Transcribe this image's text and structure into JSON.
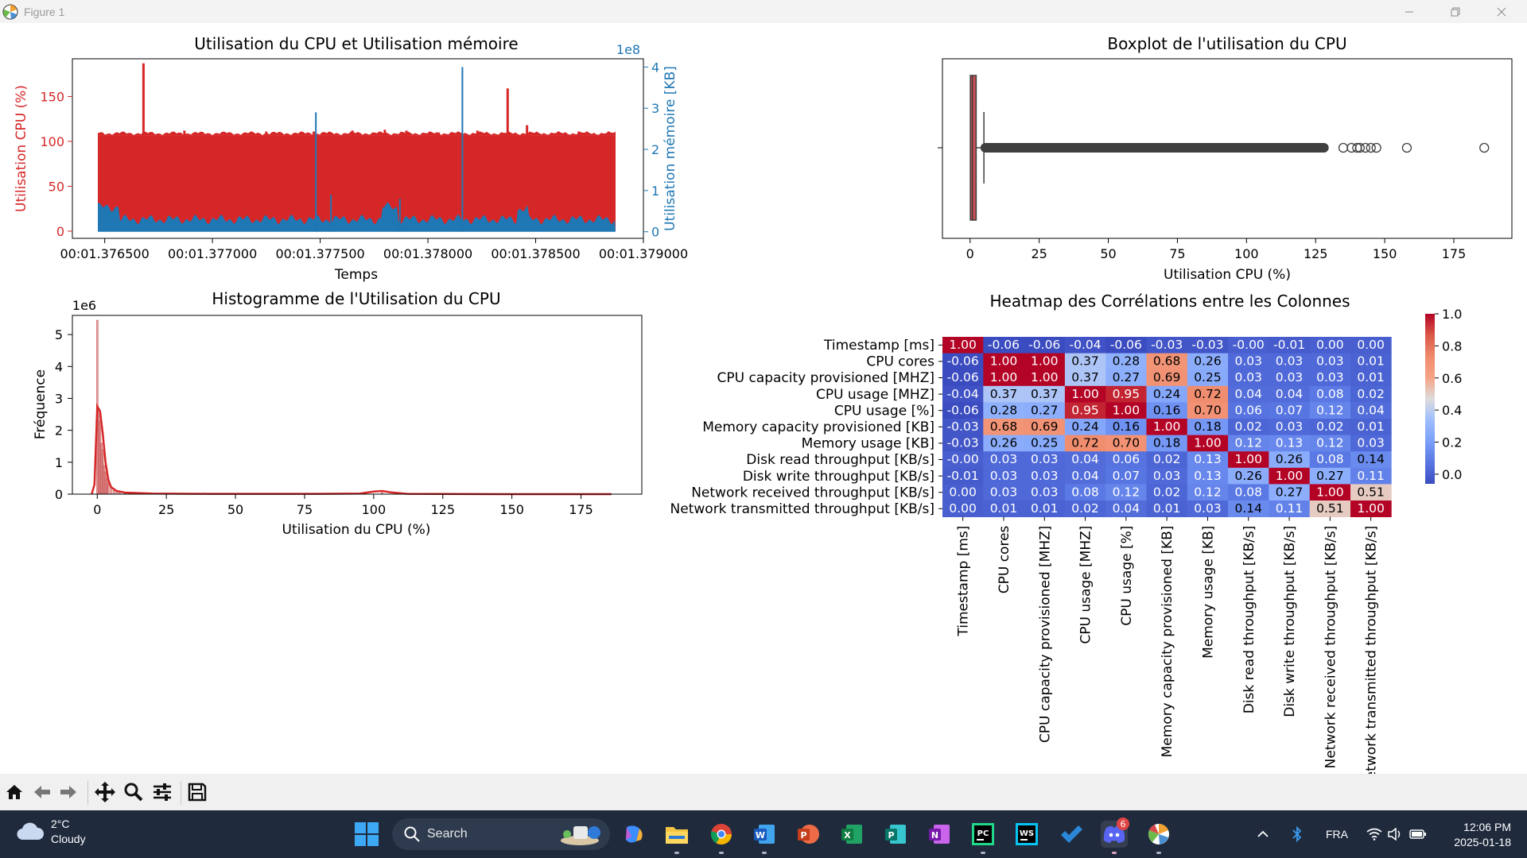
{
  "window": {
    "title": "Figure 1"
  },
  "colors": {
    "red": "#d62728",
    "blue": "#1f77b4",
    "dark_outline": "#404040"
  },
  "figure": {
    "top_left": {
      "title": "Utilisation du CPU et Utilisation mémoire",
      "xlabel": "Temps",
      "ylabel_left": "Utilisation CPU (%)",
      "ylabel_right": "Utilisation mémoire [KB]",
      "right_offset_text": "1e8",
      "xticks": [
        "00:01.376500",
        "00:01.377000",
        "00:01.377500",
        "00:01.378000",
        "00:01.378500",
        "00:01.379000"
      ],
      "yticks_left": [
        "0",
        "50",
        "100",
        "150"
      ],
      "yticks_right": [
        "0",
        "1",
        "2",
        "3",
        "4"
      ]
    },
    "top_right": {
      "title": "Boxplot de l'utilisation du CPU",
      "xlabel": "Utilisation CPU (%)",
      "xticks": [
        "0",
        "25",
        "50",
        "75",
        "100",
        "125",
        "150",
        "175"
      ]
    },
    "bottom_left": {
      "title": "Histogramme de l'Utilisation du CPU",
      "xlabel": "Utilisation du CPU (%)",
      "ylabel": "Fréquence",
      "offset_text": "1e6",
      "xticks": [
        "0",
        "25",
        "50",
        "75",
        "100",
        "125",
        "150",
        "175"
      ],
      "yticks": [
        "0",
        "1",
        "2",
        "3",
        "4",
        "5"
      ]
    },
    "heatmap": {
      "title": "Heatmap des Corrélations entre les Colonnes",
      "colorbar_ticks": [
        "0.0",
        "0.2",
        "0.4",
        "0.6",
        "0.8",
        "1.0"
      ]
    }
  },
  "chart_data": [
    {
      "type": "area",
      "title": "Utilisation du CPU et Utilisation mémoire",
      "xlabel": "Temps",
      "ylabel": "Utilisation CPU (%)",
      "y2label": "Utilisation mémoire [KB]",
      "xlim": [
        "00:01.376350",
        "00:01.379000"
      ],
      "ylim": [
        -8,
        192
      ],
      "y2lim": [
        -16000000.0,
        420000000.0
      ],
      "series": [
        {
          "name": "Utilisation CPU (%)",
          "axis": "left",
          "baseline": 107,
          "spikes": [
            {
              "t": "00:01.376680",
              "v": 187
            },
            {
              "t": "00:01.376870",
              "v": 112
            },
            {
              "t": "00:01.377060",
              "v": 110
            },
            {
              "t": "00:01.377250",
              "v": 111
            },
            {
              "t": "00:01.377470",
              "v": 111
            },
            {
              "t": "00:01.377650",
              "v": 112
            },
            {
              "t": "00:01.377800",
              "v": 113
            },
            {
              "t": "00:01.377900",
              "v": 112
            },
            {
              "t": "00:01.378050",
              "v": 110
            },
            {
              "t": "00:01.378230",
              "v": 112
            },
            {
              "t": "00:01.378370",
              "v": 159
            },
            {
              "t": "00:01.378460",
              "v": 118
            },
            {
              "t": "00:01.378700",
              "v": 111
            }
          ]
        },
        {
          "name": "Utilisation mémoire [KB]",
          "axis": "right",
          "baseline": 30000000.0,
          "spikes": [
            {
              "t": "00:01.377480",
              "v": 290000000.0
            },
            {
              "t": "00:01.378160",
              "v": 400000000.0
            },
            {
              "t": "00:01.377550",
              "v": 90000000.0
            },
            {
              "t": "00:01.377870",
              "v": 80000000.0
            }
          ]
        }
      ]
    },
    {
      "type": "box",
      "title": "Boxplot de l'utilisation du CPU",
      "xlabel": "Utilisation CPU (%)",
      "xlim": [
        -10,
        196
      ],
      "q1": 0.1,
      "median": 0.8,
      "q3": 2.2,
      "whisker_low": 0,
      "whisker_high": 5,
      "outliers_continuous_to": 128,
      "outliers": [
        135,
        138,
        140,
        141,
        143,
        145,
        147,
        158,
        186
      ]
    },
    {
      "type": "bar",
      "title": "Histogramme de l'Utilisation du CPU",
      "xlabel": "Utilisation du CPU (%)",
      "ylabel": "Fréquence",
      "xlim": [
        -9,
        197
      ],
      "ylim": [
        0,
        5600000.0
      ],
      "bins": [
        {
          "x": 0.0,
          "v": 5450000.0
        },
        {
          "x": 0.5,
          "v": 2600000.0
        },
        {
          "x": 1.0,
          "v": 2300000.0
        },
        {
          "x": 1.5,
          "v": 1600000.0
        },
        {
          "x": 2.0,
          "v": 1400000.0
        },
        {
          "x": 2.5,
          "v": 900000.0
        },
        {
          "x": 3.0,
          "v": 700000.0
        },
        {
          "x": 3.5,
          "v": 500000.0
        },
        {
          "x": 4.0,
          "v": 350000.0
        },
        {
          "x": 5.0,
          "v": 200000.0
        },
        {
          "x": 6.0,
          "v": 120000.0
        },
        {
          "x": 7.0,
          "v": 80000.0
        },
        {
          "x": 8.0,
          "v": 50000.0
        },
        {
          "x": 10.0,
          "v": 30000.0
        },
        {
          "x": 103.0,
          "v": 50000.0
        }
      ],
      "kde": [
        [
          -2,
          0
        ],
        [
          -1,
          300000.0
        ],
        [
          0,
          2750000.0
        ],
        [
          1,
          2600000.0
        ],
        [
          2,
          1900000.0
        ],
        [
          3,
          1000000.0
        ],
        [
          4,
          450000.0
        ],
        [
          5,
          220000.0
        ],
        [
          7,
          100000.0
        ],
        [
          10,
          50000.0
        ],
        [
          20,
          20000.0
        ],
        [
          40,
          10000.0
        ],
        [
          80,
          10000.0
        ],
        [
          95,
          20000.0
        ],
        [
          100,
          80000.0
        ],
        [
          103,
          100000.0
        ],
        [
          106,
          60000.0
        ],
        [
          112,
          10000.0
        ],
        [
          150,
          0.0
        ],
        [
          186,
          0.0
        ]
      ]
    },
    {
      "type": "heatmap",
      "title": "Heatmap des Corrélations entre les Colonnes",
      "labels": [
        "Timestamp [ms]",
        "CPU cores",
        "CPU capacity provisioned [MHZ]",
        "CPU usage [MHZ]",
        "CPU usage [%]",
        "Memory capacity provisioned [KB]",
        "Memory usage [KB]",
        "Disk read throughput [KB/s]",
        "Disk write throughput [KB/s]",
        "Network received throughput [KB/s]",
        "Network transmitted throughput [KB/s]"
      ],
      "values": [
        [
          1.0,
          -0.06,
          -0.06,
          -0.04,
          -0.06,
          -0.03,
          -0.03,
          -0.0,
          -0.01,
          0.0,
          0.0
        ],
        [
          -0.06,
          1.0,
          1.0,
          0.37,
          0.28,
          0.68,
          0.26,
          0.03,
          0.03,
          0.03,
          0.01
        ],
        [
          -0.06,
          1.0,
          1.0,
          0.37,
          0.27,
          0.69,
          0.25,
          0.03,
          0.03,
          0.03,
          0.01
        ],
        [
          -0.04,
          0.37,
          0.37,
          1.0,
          0.95,
          0.24,
          0.72,
          0.04,
          0.04,
          0.08,
          0.02
        ],
        [
          -0.06,
          0.28,
          0.27,
          0.95,
          1.0,
          0.16,
          0.7,
          0.06,
          0.07,
          0.12,
          0.04
        ],
        [
          -0.03,
          0.68,
          0.69,
          0.24,
          0.16,
          1.0,
          0.18,
          0.02,
          0.03,
          0.02,
          0.01
        ],
        [
          -0.03,
          0.26,
          0.25,
          0.72,
          0.7,
          0.18,
          1.0,
          0.12,
          0.13,
          0.12,
          0.03
        ],
        [
          -0.0,
          0.03,
          0.03,
          0.04,
          0.06,
          0.02,
          0.13,
          1.0,
          0.26,
          0.08,
          0.14
        ],
        [
          -0.01,
          0.03,
          0.03,
          0.04,
          0.07,
          0.03,
          0.13,
          0.26,
          1.0,
          0.27,
          0.11
        ],
        [
          0.0,
          0.03,
          0.03,
          0.08,
          0.12,
          0.02,
          0.12,
          0.08,
          0.27,
          1.0,
          0.51
        ],
        [
          0.0,
          0.01,
          0.01,
          0.02,
          0.04,
          0.01,
          0.03,
          0.14,
          0.11,
          0.51,
          1.0
        ]
      ],
      "value_labels": [
        [
          "1.00",
          "-0.06",
          "-0.06",
          "-0.04",
          "-0.06",
          "-0.03",
          "-0.03",
          "-0.00",
          "-0.01",
          "0.00",
          "0.00"
        ],
        [
          "-0.06",
          "1.00",
          "1.00",
          "0.37",
          "0.28",
          "0.68",
          "0.26",
          "0.03",
          "0.03",
          "0.03",
          "0.01"
        ],
        [
          "-0.06",
          "1.00",
          "1.00",
          "0.37",
          "0.27",
          "0.69",
          "0.25",
          "0.03",
          "0.03",
          "0.03",
          "0.01"
        ],
        [
          "-0.04",
          "0.37",
          "0.37",
          "1.00",
          "0.95",
          "0.24",
          "0.72",
          "0.04",
          "0.04",
          "0.08",
          "0.02"
        ],
        [
          "-0.06",
          "0.28",
          "0.27",
          "0.95",
          "1.00",
          "0.16",
          "0.70",
          "0.06",
          "0.07",
          "0.12",
          "0.04"
        ],
        [
          "-0.03",
          "0.68",
          "0.69",
          "0.24",
          "0.16",
          "1.00",
          "0.18",
          "0.02",
          "0.03",
          "0.02",
          "0.01"
        ],
        [
          "-0.03",
          "0.26",
          "0.25",
          "0.72",
          "0.70",
          "0.18",
          "1.00",
          "0.12",
          "0.13",
          "0.12",
          "0.03"
        ],
        [
          "-0.00",
          "0.03",
          "0.03",
          "0.04",
          "0.06",
          "0.02",
          "0.13",
          "1.00",
          "0.26",
          "0.08",
          "0.14"
        ],
        [
          "-0.01",
          "0.03",
          "0.03",
          "0.04",
          "0.07",
          "0.03",
          "0.13",
          "0.26",
          "1.00",
          "0.27",
          "0.11"
        ],
        [
          "0.00",
          "0.03",
          "0.03",
          "0.08",
          "0.12",
          "0.02",
          "0.12",
          "0.08",
          "0.27",
          "1.00",
          "0.51"
        ],
        [
          "0.00",
          "0.01",
          "0.01",
          "0.02",
          "0.04",
          "0.01",
          "0.03",
          "0.14",
          "0.11",
          "0.51",
          "1.00"
        ]
      ],
      "vmin": -0.06,
      "vmax": 1.0,
      "colormap": "coolwarm"
    }
  ],
  "toolbar": {
    "items": [
      "home-icon",
      "back-icon",
      "forward-icon",
      "pan-icon",
      "zoom-icon",
      "configure-subplots-icon",
      "save-icon"
    ]
  },
  "taskbar": {
    "weather_temp": "2°C",
    "weather_desc": "Cloudy",
    "search_label": "Search",
    "language": "FRA",
    "time": "12:06 PM",
    "date": "2025-01-18",
    "discord_badge": "6"
  }
}
